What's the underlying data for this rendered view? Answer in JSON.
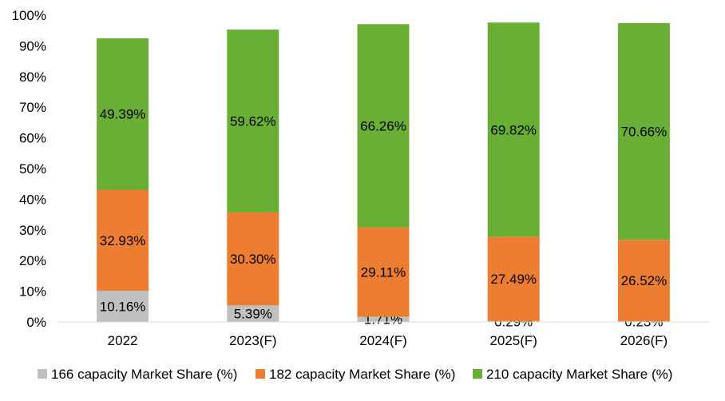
{
  "chart_data": {
    "type": "bar",
    "stacked": true,
    "categories": [
      "2022",
      "2023(F)",
      "2024(F)",
      "2025(F)",
      "2026(F)"
    ],
    "series": [
      {
        "name": "166 capacity Market Share (%)",
        "color": "#c0c0c0",
        "values": [
          10.16,
          5.39,
          1.71,
          0.29,
          0.23
        ],
        "labels": [
          "10.16%",
          "5.39%",
          "1.71%",
          "0.29%",
          "0.23%"
        ]
      },
      {
        "name": "182 capacity Market Share (%)",
        "color": "#ed7d31",
        "values": [
          32.93,
          30.3,
          29.11,
          27.49,
          26.52
        ],
        "labels": [
          "32.93%",
          "30.30%",
          "29.11%",
          "27.49%",
          "26.52%"
        ]
      },
      {
        "name": "210 capacity Market Share (%)",
        "color": "#6aaf35",
        "values": [
          49.39,
          59.62,
          66.26,
          69.82,
          70.66
        ],
        "labels": [
          "49.39%",
          "59.62%",
          "66.26%",
          "69.82%",
          "70.66%"
        ]
      }
    ],
    "ylim": [
      0,
      100
    ],
    "yticks": [
      "0%",
      "10%",
      "20%",
      "30%",
      "40%",
      "50%",
      "60%",
      "70%",
      "80%",
      "90%",
      "100%"
    ],
    "grid": false,
    "legend": "bottom"
  }
}
